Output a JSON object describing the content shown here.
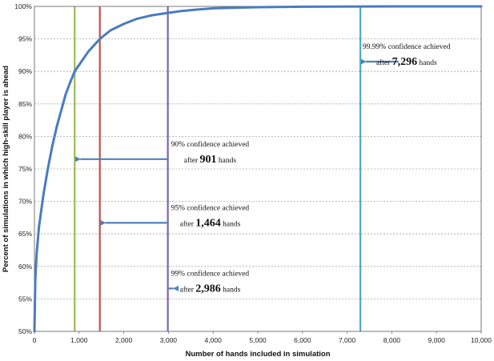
{
  "chart_data": {
    "type": "line",
    "title": "",
    "xlabel": "Number of hands included in simulation",
    "ylabel": "Percent of simulations in which high-skill player is ahead",
    "xlim": [
      0,
      10000
    ],
    "ylim": [
      50,
      100
    ],
    "grid": true,
    "x_ticks": [
      0,
      1000,
      2000,
      3000,
      4000,
      5000,
      6000,
      7000,
      8000,
      9000,
      10000
    ],
    "x_tick_labels": [
      "0",
      "1,000",
      "2,000",
      "3,000",
      "4,000",
      "5,000",
      "6,000",
      "7,000",
      "8,000",
      "9,000",
      "10,000"
    ],
    "y_ticks": [
      50,
      55,
      60,
      65,
      70,
      75,
      80,
      85,
      90,
      95,
      100
    ],
    "y_tick_labels": [
      "50%",
      "55%",
      "60%",
      "65%",
      "70%",
      "75%",
      "80%",
      "85%",
      "90%",
      "95%",
      "100%"
    ],
    "series": [
      {
        "color": "#4a7bc0",
        "x": [
          0,
          20,
          50,
          100,
          150,
          200,
          300,
          400,
          500,
          600,
          700,
          800,
          901,
          1000,
          1200,
          1464,
          1700,
          2000,
          2300,
          2600,
          2986,
          3300,
          3600,
          4000,
          4500,
          5000,
          6000,
          7296,
          8000,
          9000,
          10000
        ],
        "y": [
          50,
          58,
          62,
          66,
          68.5,
          71,
          75,
          78.5,
          81.5,
          84,
          86.5,
          88.3,
          90,
          91,
          93,
          95,
          96.3,
          97.3,
          98.1,
          98.6,
          99,
          99.3,
          99.5,
          99.7,
          99.8,
          99.88,
          99.95,
          99.99,
          100,
          100,
          100
        ]
      }
    ],
    "vertical_lines": [
      {
        "x": 901,
        "color": "#9bbb59"
      },
      {
        "x": 1464,
        "color": "#c0504d"
      },
      {
        "x": 2986,
        "color": "#8064a2"
      },
      {
        "x": 7296,
        "color": "#4bacc6"
      }
    ],
    "annotations": [
      {
        "line1": "90% confidence achieved",
        "pre": "after ",
        "num": "901",
        "post": " hands",
        "target_x": 901,
        "y": 76.5,
        "text_x": 3000
      },
      {
        "line1": "95% confidence achieved",
        "pre": "after ",
        "num": "1,464",
        "post": " hands",
        "target_x": 1464,
        "y": 66.7,
        "text_x": 3000
      },
      {
        "line1": "99% confidence achieved",
        "pre": "after ",
        "num": "2,986",
        "post": " hands",
        "target_x": 2986,
        "y": 56.6,
        "text_x": 3000
      },
      {
        "line1": "99.99% confidence achieved",
        "pre": "after ",
        "num": "7,296",
        "post": " hands",
        "target_x": 7296,
        "y": 91.5,
        "text_x": 8150
      }
    ]
  }
}
